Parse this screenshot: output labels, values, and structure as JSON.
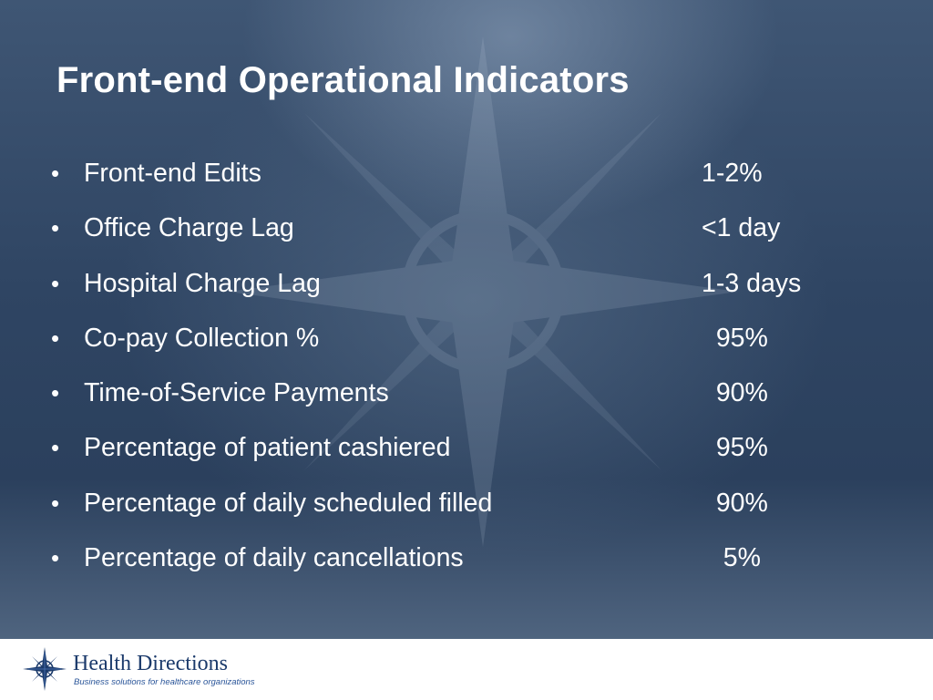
{
  "slide": {
    "title": "Front-end Operational Indicators",
    "bullet_glyph": "•",
    "indicators": [
      {
        "label": "Front-end Edits",
        "value": "1-2%"
      },
      {
        "label": "Office Charge Lag",
        "value": "<1 day"
      },
      {
        "label": "Hospital Charge Lag",
        "value": "1-3 days"
      },
      {
        "label": "Co-pay Collection %",
        "value": "  95%"
      },
      {
        "label": "Time-of-Service Payments",
        "value": "  90%"
      },
      {
        "label": "Percentage of patient cashiered",
        "value": "  95%"
      },
      {
        "label": "Percentage of daily scheduled filled",
        "value": "  90%"
      },
      {
        "label": "Percentage of daily cancellations",
        "value": "   5%"
      }
    ]
  },
  "footer": {
    "logo_icon": "compass-star-icon",
    "logo_name": "Health Directions",
    "logo_tagline": "Business solutions for healthcare organizations"
  },
  "colors": {
    "background": "#2f4563",
    "text": "#ffffff",
    "logo_blue": "#1b3a6b"
  }
}
